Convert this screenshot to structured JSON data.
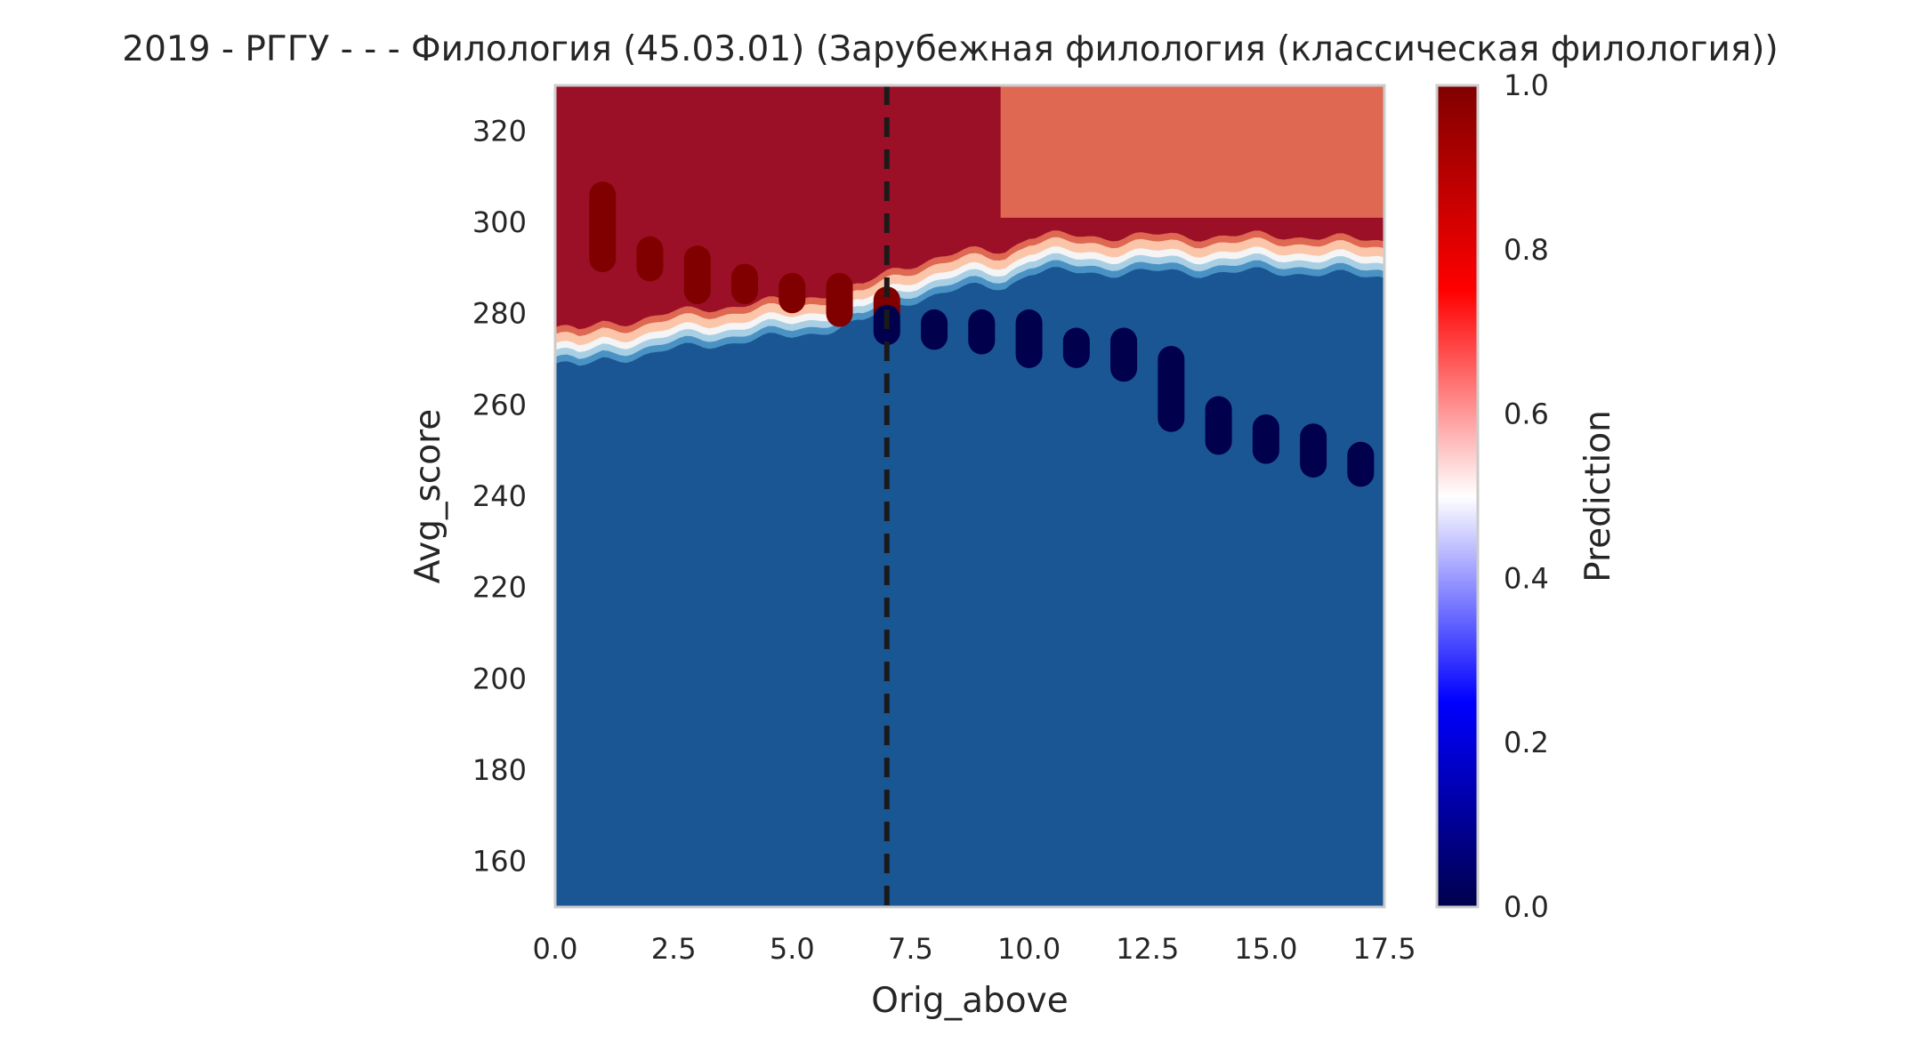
{
  "chart_data": {
    "type": "heatmap",
    "title": "2019 - РГГУ - - - Филология (45.03.01) (Зарубежная филология (классическая филология))",
    "xlabel": "Orig_above",
    "ylabel": "Avg_score",
    "xlim": [
      0,
      17.5
    ],
    "ylim": [
      150,
      330
    ],
    "xticks": [
      "0.0",
      "2.5",
      "5.0",
      "7.5",
      "10.0",
      "12.5",
      "15.0",
      "17.5"
    ],
    "yticks": [
      "160",
      "180",
      "200",
      "220",
      "240",
      "260",
      "280",
      "300",
      "320"
    ],
    "grid": false,
    "threshold_line": {
      "x": 7,
      "style": "dashed",
      "color": "#1a1a1a"
    },
    "colorbar": {
      "label": "Prediction",
      "range": [
        0,
        1
      ],
      "ticks": [
        "0.0",
        "0.2",
        "0.4",
        "0.6",
        "0.8",
        "1.0"
      ],
      "colormap": "seismic",
      "colors": [
        "#00004c",
        "#0000ff",
        "#ffffff",
        "#ff0000",
        "#800000"
      ]
    },
    "contour_levels": [
      {
        "level": 0.1,
        "color": "#1b5694"
      },
      {
        "level": 0.2,
        "color": "#4a92c4"
      },
      {
        "level": 0.35,
        "color": "#a9cfe5"
      },
      {
        "level": 0.5,
        "color": "#f5f5f5"
      },
      {
        "level": 0.65,
        "color": "#fbc5aa"
      },
      {
        "level": 0.8,
        "color": "#de6851"
      },
      {
        "level": 0.95,
        "color": "#9b1027"
      }
    ],
    "decision_boundary": {
      "x": [
        0,
        0.5,
        1,
        2,
        3,
        4,
        5,
        5.5,
        6,
        6.5,
        7,
        7.2,
        7.5,
        8,
        9,
        9.5,
        10,
        11,
        12,
        13,
        14,
        15,
        16,
        17,
        17.5
      ],
      "y": [
        272,
        271,
        273,
        274,
        276,
        277,
        278,
        279,
        280,
        281,
        284,
        285,
        286,
        287,
        289,
        289,
        292,
        292,
        292,
        292,
        292,
        292,
        292,
        291,
        291
      ]
    },
    "upper_region_split": {
      "x": 9.4,
      "y_above": 301,
      "left_value": 0.97,
      "right_value": 0.78
    },
    "series": [
      {
        "name": "",
        "color": "#800000",
        "points": [
          {
            "x": 1,
            "y": [
              292,
              306
            ]
          },
          {
            "x": 2,
            "y": [
              290,
              294
            ]
          },
          {
            "x": 3,
            "y": [
              285,
              292
            ]
          },
          {
            "x": 4,
            "y": [
              285,
              288
            ]
          },
          {
            "x": 5,
            "y": [
              283,
              286
            ]
          },
          {
            "x": 6,
            "y": [
              280,
              286
            ]
          },
          {
            "x": 7,
            "y": [
              280,
              283
            ]
          }
        ]
      },
      {
        "name": "",
        "color": "#00004c",
        "points": [
          {
            "x": 7,
            "y": [
              276,
              279
            ]
          },
          {
            "x": 8,
            "y": [
              275,
              278
            ]
          },
          {
            "x": 9,
            "y": [
              274,
              278
            ]
          },
          {
            "x": 10,
            "y": [
              271,
              278
            ]
          },
          {
            "x": 11,
            "y": [
              271,
              274
            ]
          },
          {
            "x": 12,
            "y": [
              268,
              274
            ]
          },
          {
            "x": 13,
            "y": [
              257,
              270
            ]
          },
          {
            "x": 14,
            "y": [
              252,
              259
            ]
          },
          {
            "x": 15,
            "y": [
              250,
              255
            ]
          },
          {
            "x": 16,
            "y": [
              247,
              253
            ]
          },
          {
            "x": 17,
            "y": [
              245,
              249
            ]
          }
        ]
      }
    ]
  }
}
